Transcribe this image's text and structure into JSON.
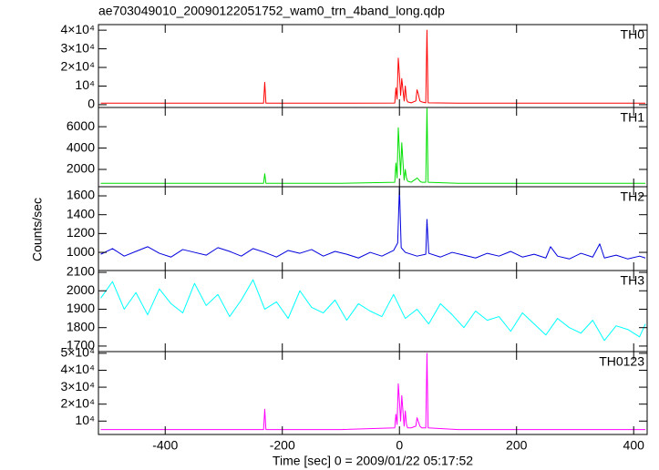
{
  "title": "ae703049010_20090122051752_wam0_trn_4band_long.qdp",
  "ylabel": "Counts/sec",
  "xlabel": "Time [sec] 0 = 2009/01/22 05:17:52",
  "chart_data": [
    {
      "type": "line",
      "label": "TH0",
      "color": "#ff0000",
      "x": [
        -510,
        -400,
        -300,
        -232,
        -230,
        -228,
        -100,
        -8,
        -6,
        -4,
        -2,
        0,
        2,
        4,
        8,
        10,
        12,
        14,
        20,
        28,
        30,
        32,
        35,
        38,
        45,
        47,
        49,
        100,
        200,
        340,
        400,
        420
      ],
      "values": [
        800,
        800,
        800,
        800,
        12000,
        800,
        800,
        900,
        9000,
        3000,
        25000,
        16000,
        5000,
        14000,
        2000,
        10000,
        3000,
        1500,
        1000,
        2000,
        8000,
        6000,
        2000,
        1500,
        1000,
        40000,
        1000,
        800,
        800,
        800,
        800,
        800
      ],
      "xlim": [
        -514,
        423
      ],
      "ylim": [
        -1500,
        43000
      ],
      "yticks": [
        0,
        {
          "value": 10000,
          "label": "10⁴"
        },
        {
          "value": 20000,
          "label": "2×10⁴"
        },
        {
          "value": 30000,
          "label": "3×10⁴"
        },
        {
          "value": 40000,
          "label": "4×10⁴"
        }
      ]
    },
    {
      "type": "line",
      "label": "TH1",
      "color": "#00e000",
      "x": [
        -510,
        -400,
        -300,
        -232,
        -230,
        -228,
        -100,
        -8,
        -6,
        -4,
        -2,
        0,
        2,
        4,
        8,
        10,
        12,
        14,
        20,
        28,
        30,
        32,
        35,
        38,
        45,
        47,
        49,
        100,
        200,
        340,
        400,
        420
      ],
      "values": [
        700,
        700,
        700,
        700,
        1600,
        700,
        700,
        800,
        2600,
        1200,
        5900,
        3800,
        1500,
        4500,
        1000,
        2000,
        1200,
        900,
        800,
        1100,
        1200,
        1100,
        900,
        800,
        800,
        7700,
        800,
        700,
        700,
        700,
        700,
        700
      ],
      "xlim": [
        -514,
        423
      ],
      "ylim": [
        380,
        7800
      ],
      "yticks": [
        2000,
        4000,
        6000
      ]
    },
    {
      "type": "line",
      "label": "TH2",
      "color": "#0000dd",
      "x": [
        -510,
        -490,
        -470,
        -450,
        -430,
        -410,
        -390,
        -370,
        -350,
        -330,
        -310,
        -290,
        -270,
        -250,
        -230,
        -210,
        -190,
        -170,
        -150,
        -130,
        -110,
        -90,
        -70,
        -50,
        -30,
        -10,
        -3,
        0,
        3,
        10,
        30,
        45,
        47,
        50,
        70,
        90,
        110,
        130,
        150,
        170,
        190,
        210,
        230,
        250,
        258,
        270,
        290,
        310,
        330,
        342,
        350,
        370,
        390,
        410,
        420
      ],
      "values": [
        980,
        1040,
        960,
        1010,
        1060,
        990,
        950,
        1030,
        1000,
        970,
        1050,
        1010,
        960,
        1040,
        1000,
        950,
        1020,
        990,
        1030,
        960,
        1010,
        980,
        940,
        1000,
        960,
        1020,
        1100,
        1690,
        1050,
        1000,
        960,
        980,
        1350,
        990,
        950,
        1000,
        970,
        940,
        990,
        960,
        1010,
        950,
        980,
        940,
        1060,
        960,
        930,
        990,
        950,
        1090,
        940,
        970,
        930,
        960,
        940
      ],
      "xlim": [
        -514,
        423
      ],
      "ylim": [
        807,
        1697
      ],
      "yticks": [
        1000,
        1200,
        1400,
        1600
      ]
    },
    {
      "type": "line",
      "label": "TH3",
      "color": "#00ffff",
      "x": [
        -510,
        -490,
        -470,
        -450,
        -430,
        -410,
        -390,
        -370,
        -350,
        -330,
        -310,
        -290,
        -270,
        -250,
        -230,
        -210,
        -190,
        -170,
        -150,
        -130,
        -110,
        -90,
        -70,
        -50,
        -30,
        -10,
        10,
        30,
        50,
        70,
        90,
        110,
        130,
        150,
        170,
        190,
        210,
        230,
        250,
        270,
        290,
        310,
        330,
        350,
        370,
        390,
        410,
        420
      ],
      "values": [
        1960,
        2050,
        1900,
        1990,
        1870,
        2010,
        1930,
        1880,
        2040,
        1920,
        1980,
        1860,
        1950,
        2060,
        1900,
        1940,
        1850,
        2000,
        1910,
        1880,
        1950,
        1840,
        1930,
        1890,
        1860,
        1980,
        1850,
        1900,
        1820,
        1930,
        1870,
        1800,
        1890,
        1840,
        1860,
        1780,
        1880,
        1820,
        1760,
        1850,
        1800,
        1770,
        1840,
        1730,
        1810,
        1790,
        1750,
        1820
      ],
      "xlim": [
        -514,
        423
      ],
      "ylim": [
        1670,
        2110
      ],
      "yticks": [
        1700,
        1800,
        1900,
        2000,
        2100
      ]
    },
    {
      "type": "line",
      "label": "TH0123",
      "color": "#ff00ff",
      "x": [
        -510,
        -400,
        -300,
        -232,
        -230,
        -228,
        -100,
        -8,
        -6,
        -4,
        -2,
        0,
        2,
        4,
        8,
        10,
        12,
        14,
        20,
        28,
        30,
        32,
        35,
        38,
        45,
        47,
        49,
        100,
        200,
        340,
        400,
        420
      ],
      "values": [
        5000,
        5000,
        5000,
        5000,
        17000,
        5000,
        5000,
        6000,
        14000,
        8000,
        32000,
        22000,
        10000,
        25000,
        7000,
        16000,
        8000,
        6000,
        6000,
        7000,
        12000,
        10000,
        7000,
        6000,
        6000,
        50000,
        6000,
        5000,
        5000,
        5000,
        5000,
        5000
      ],
      "xlim": [
        -514,
        423
      ],
      "ylim": [
        2100,
        51000
      ],
      "yticks": [
        {
          "value": 10000,
          "label": "10⁴"
        },
        {
          "value": 20000,
          "label": "2×10⁴"
        },
        {
          "value": 30000,
          "label": "3×10⁴"
        },
        {
          "value": 40000,
          "label": "4×10⁴"
        },
        {
          "value": 50000,
          "label": "5×10⁴"
        }
      ],
      "xticks": [
        -400,
        -200,
        0,
        200,
        400
      ]
    }
  ]
}
